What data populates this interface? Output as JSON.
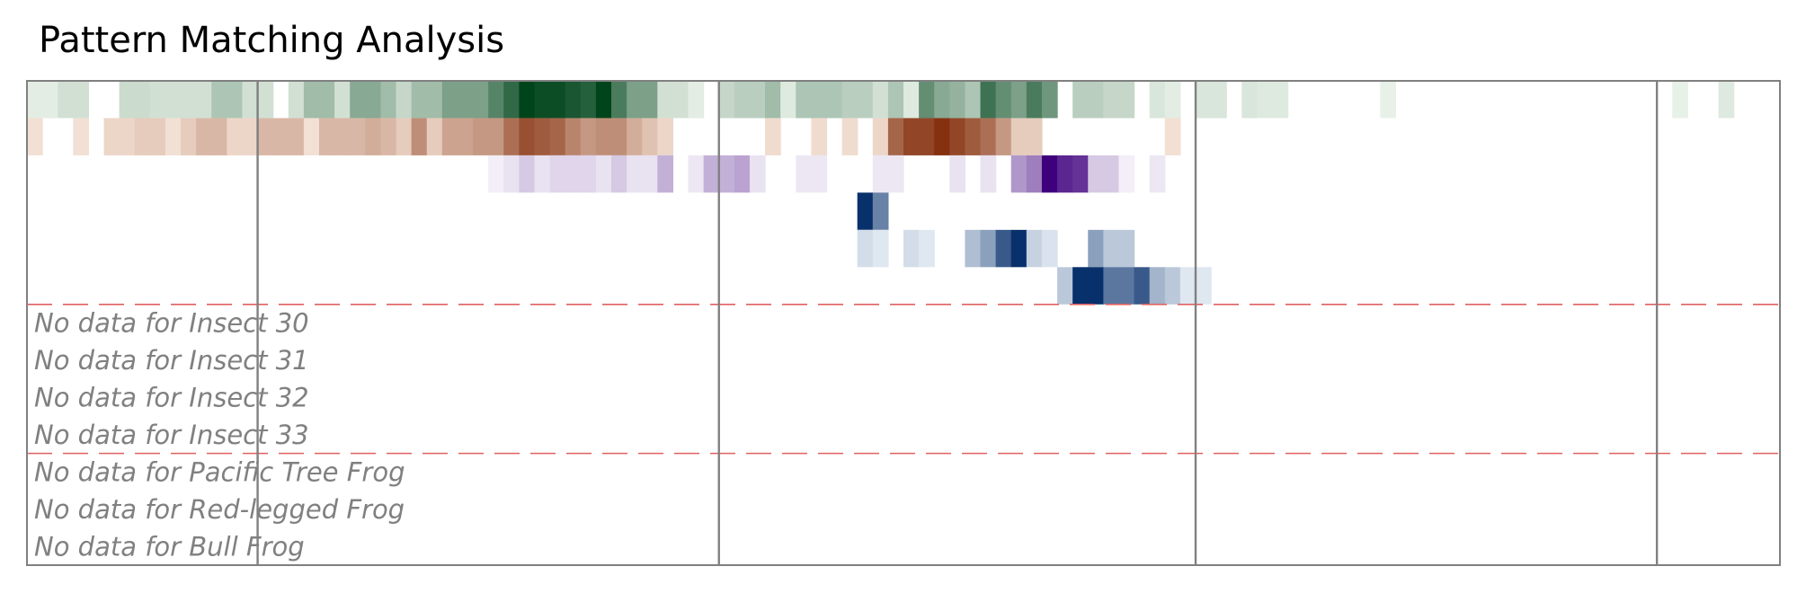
{
  "chart_data": {
    "type": "heatmap",
    "title": "Pattern Matching Analysis",
    "columns": 114,
    "data_rows": [
      {
        "colormap": "Greens",
        "color_range": [
          "#f7fcf5",
          "#00441b"
        ],
        "start_col": 0,
        "values": [
          0.08,
          0.08,
          0.15,
          0.15,
          0,
          0,
          0.18,
          0.18,
          0.15,
          0.15,
          0.15,
          0.15,
          0.3,
          0.3,
          0.15,
          0.15,
          0,
          0.15,
          0.35,
          0.35,
          0.15,
          0.45,
          0.45,
          0.35,
          0.2,
          0.35,
          0.35,
          0.5,
          0.5,
          0.5,
          0.65,
          0.8,
          1.0,
          0.95,
          0.95,
          0.9,
          0.85,
          1.0,
          0.7,
          0.5,
          0.5,
          0.15,
          0.15,
          0.08,
          0,
          0.2,
          0.25,
          0.25,
          0.35,
          0.1,
          0.3,
          0.3,
          0.3,
          0.25,
          0.25,
          0.15,
          0.3,
          0.1,
          0.6,
          0.45,
          0.4,
          0.3,
          0.75,
          0.6,
          0.5,
          0.7,
          0.55,
          0,
          0.25,
          0.25,
          0.2,
          0.2,
          0,
          0.12,
          0.08,
          0,
          0.12,
          0.12,
          0,
          0.12,
          0.1,
          0.1,
          0,
          0,
          0,
          0,
          0,
          0,
          0.06,
          0,
          0,
          0,
          0,
          0,
          0,
          0,
          0,
          0,
          0,
          0,
          0,
          0,
          0,
          0,
          0,
          0,
          0,
          0.06,
          0,
          0,
          0.1,
          0,
          0,
          0
        ]
      },
      {
        "colormap": "Oranges",
        "color_range": [
          "#fff5eb",
          "#7f2704"
        ],
        "start_col": 0,
        "values": [
          0.1,
          0,
          0,
          0.1,
          0,
          0.15,
          0.15,
          0.2,
          0.2,
          0.1,
          0.2,
          0.3,
          0.3,
          0.15,
          0.15,
          0.3,
          0.3,
          0.3,
          0.1,
          0.3,
          0.3,
          0.3,
          0.35,
          0.3,
          0.2,
          0.5,
          0.2,
          0.4,
          0.4,
          0.45,
          0.45,
          0.65,
          0.8,
          0.75,
          0.7,
          0.55,
          0.45,
          0.5,
          0.5,
          0.35,
          0.25,
          0.15,
          0,
          0,
          0,
          0,
          0,
          0,
          0.12,
          0,
          0,
          0.12,
          0,
          0.12,
          0,
          0.15,
          0.7,
          0.85,
          0.85,
          0.95,
          0.85,
          0.75,
          0.65,
          0.45,
          0.2,
          0.2,
          0,
          0,
          0,
          0,
          0,
          0,
          0,
          0,
          0.1,
          0,
          0,
          0,
          0,
          0,
          0,
          0,
          0,
          0,
          0,
          0,
          0,
          0,
          0,
          0,
          0,
          0,
          0,
          0,
          0,
          0,
          0,
          0,
          0,
          0,
          0,
          0,
          0,
          0,
          0,
          0,
          0,
          0,
          0,
          0,
          0,
          0,
          0,
          0
        ]
      },
      {
        "colormap": "Purples",
        "color_range": [
          "#fcfbfd",
          "#3f007d"
        ],
        "start_col": 30,
        "values": [
          0.05,
          0.1,
          0.2,
          0.1,
          0.15,
          0.15,
          0.15,
          0.1,
          0.2,
          0.1,
          0.1,
          0.3,
          0,
          0.08,
          0.3,
          0.3,
          0.35,
          0.1,
          0,
          0,
          0.08,
          0.08,
          0,
          0,
          0,
          0.08,
          0.08,
          0,
          0,
          0,
          0.1,
          0,
          0.1,
          0,
          0.4,
          0.5,
          1.0,
          0.85,
          0.8,
          0.2,
          0.2,
          0.05,
          0,
          0.08
        ]
      },
      {
        "colormap": "Blues",
        "color_range": [
          "#f7fbff",
          "#08306b"
        ],
        "start_col": 54,
        "values": [
          1.0,
          0.6
        ]
      },
      {
        "colormap": "Blues",
        "color_range": [
          "#f7fbff",
          "#08306b"
        ],
        "start_col": 54,
        "values": [
          0.15,
          0.1,
          0,
          0.15,
          0.1,
          0,
          0,
          0.3,
          0.45,
          0.8,
          1.0,
          0.2,
          0.12,
          0,
          0,
          0.45,
          0.25,
          0.25
        ]
      },
      {
        "colormap": "Blues",
        "color_range": [
          "#f7fbff",
          "#08306b"
        ],
        "start_col": 67,
        "values": [
          0.25,
          1.0,
          1.0,
          0.65,
          0.65,
          0.8,
          0.35,
          0.25,
          0.1,
          0.1
        ]
      }
    ],
    "empty_rows": [
      "No data for Insect 30",
      "No data for Insect 31",
      "No data for Insect 32",
      "No data for Insect 33",
      "No data for Pacific Tree Frog",
      "No data for Red-legged Frog",
      "No data for Bull Frog"
    ],
    "dashed_separator_color": "#e06060",
    "grid_line_color": "#808080",
    "grid": false,
    "legend": "none"
  }
}
